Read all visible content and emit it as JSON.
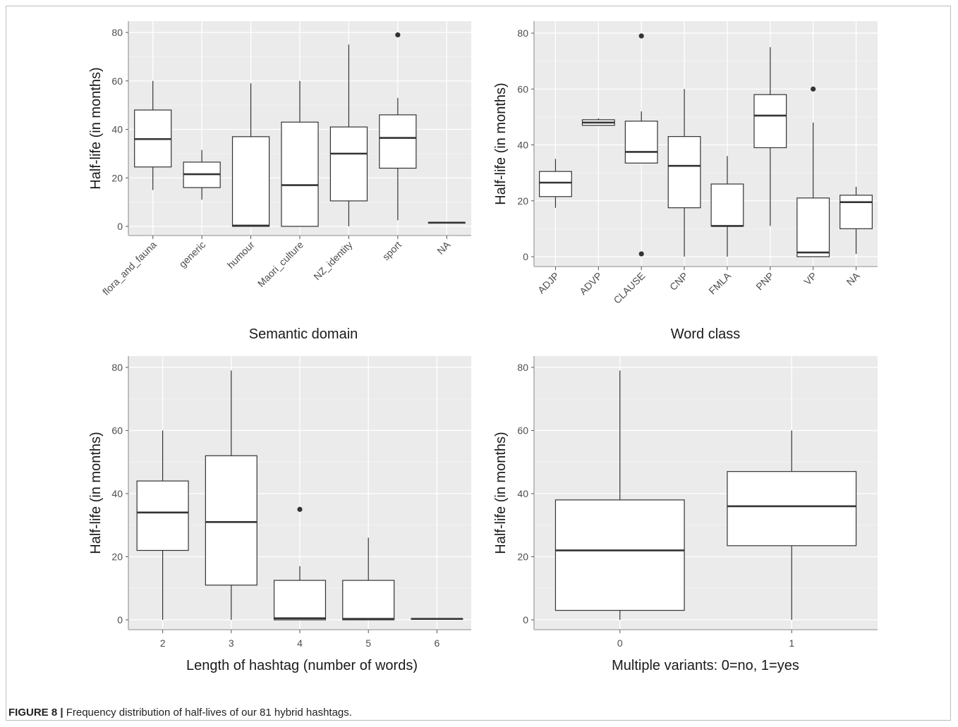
{
  "caption": {
    "label": "FIGURE 8 |",
    "text": "Frequency distribution of half-lives of our 81 hybrid hashtags."
  },
  "colors": {
    "panel_background": "#ebebeb",
    "grid": "#ffffff",
    "box_fill": "#ffffff",
    "box_stroke": "#333333"
  },
  "chart_data": [
    {
      "type": "boxplot",
      "xlabel": "Semantic domain",
      "ylabel": "Half-life (in months)",
      "ylim": [
        0,
        80
      ],
      "yticks": [
        0,
        20,
        40,
        60,
        80
      ],
      "rotated_x_labels": true,
      "grid": true,
      "categories": [
        "flora_and_fauna",
        "generic",
        "humour",
        "Maori_culture",
        "NZ_identity",
        "sport",
        "NA"
      ],
      "boxes": [
        {
          "min": 15,
          "q1": 24.5,
          "median": 36,
          "q3": 48,
          "max": 60,
          "outliers": []
        },
        {
          "min": 11,
          "q1": 16,
          "median": 21.5,
          "q3": 26.5,
          "max": 31.5,
          "outliers": []
        },
        {
          "min": 0,
          "q1": 0,
          "median": 0.3,
          "q3": 37,
          "max": 59,
          "outliers": []
        },
        {
          "min": 0,
          "q1": 0,
          "median": 17,
          "q3": 43,
          "max": 60,
          "outliers": []
        },
        {
          "min": 0,
          "q1": 10.5,
          "median": 30,
          "q3": 41,
          "max": 75,
          "outliers": []
        },
        {
          "min": 2.5,
          "q1": 24,
          "median": 36.5,
          "q3": 46,
          "max": 53,
          "outliers": [
            79
          ]
        },
        {
          "min": 1.5,
          "q1": 1.5,
          "median": 1.5,
          "q3": 1.5,
          "max": 1.5,
          "outliers": []
        }
      ]
    },
    {
      "type": "boxplot",
      "xlabel": "Word class",
      "ylabel": "Half-life (in months)",
      "ylim": [
        0,
        80
      ],
      "yticks": [
        0,
        20,
        40,
        60,
        80
      ],
      "rotated_x_labels": true,
      "grid": true,
      "categories": [
        "ADJP",
        "ADVP",
        "CLAUSE",
        "CNP",
        "FMLA",
        "PNP",
        "VP",
        "NA"
      ],
      "boxes": [
        {
          "min": 17.5,
          "q1": 21.5,
          "median": 26.5,
          "q3": 30.5,
          "max": 35,
          "outliers": []
        },
        {
          "min": 47,
          "q1": 47,
          "median": 48,
          "q3": 49,
          "max": 49.5,
          "outliers": []
        },
        {
          "min": 33.5,
          "q1": 33.5,
          "median": 37.5,
          "q3": 48.5,
          "max": 52,
          "outliers": [
            79,
            1
          ]
        },
        {
          "min": 0,
          "q1": 17.5,
          "median": 32.5,
          "q3": 43,
          "max": 60,
          "outliers": []
        },
        {
          "min": 0,
          "q1": 11,
          "median": 11,
          "q3": 26,
          "max": 36,
          "outliers": []
        },
        {
          "min": 11,
          "q1": 39,
          "median": 50.5,
          "q3": 58,
          "max": 75,
          "outliers": []
        },
        {
          "min": 0,
          "q1": 0,
          "median": 1.5,
          "q3": 21,
          "max": 48,
          "outliers": [
            60
          ]
        },
        {
          "min": 1,
          "q1": 10,
          "median": 19.5,
          "q3": 22,
          "max": 25,
          "outliers": []
        }
      ]
    },
    {
      "type": "boxplot",
      "xlabel": "Length of hashtag (number of words)",
      "ylabel": "Half-life (in months)",
      "ylim": [
        0,
        80
      ],
      "yticks": [
        0,
        20,
        40,
        60,
        80
      ],
      "rotated_x_labels": false,
      "grid": true,
      "categories": [
        "2",
        "3",
        "4",
        "5",
        "6"
      ],
      "boxes": [
        {
          "min": 0,
          "q1": 22,
          "median": 34,
          "q3": 44,
          "max": 60,
          "outliers": []
        },
        {
          "min": 0,
          "q1": 11,
          "median": 31,
          "q3": 52,
          "max": 79,
          "outliers": []
        },
        {
          "min": 0,
          "q1": 0,
          "median": 0.5,
          "q3": 12.5,
          "max": 17,
          "outliers": [
            35
          ]
        },
        {
          "min": 0,
          "q1": 0,
          "median": 0.3,
          "q3": 12.5,
          "max": 26,
          "outliers": []
        },
        {
          "min": 0.3,
          "q1": 0.3,
          "median": 0.3,
          "q3": 0.3,
          "max": 0.3,
          "outliers": []
        }
      ]
    },
    {
      "type": "boxplot",
      "xlabel": "Multiple variants: 0=no, 1=yes",
      "ylabel": "Half-life (in months)",
      "ylim": [
        0,
        80
      ],
      "yticks": [
        0,
        20,
        40,
        60,
        80
      ],
      "rotated_x_labels": false,
      "grid": true,
      "categories": [
        "0",
        "1"
      ],
      "boxes": [
        {
          "min": 0,
          "q1": 3,
          "median": 22,
          "q3": 38,
          "max": 79,
          "outliers": []
        },
        {
          "min": 0,
          "q1": 23.5,
          "median": 36,
          "q3": 47,
          "max": 60,
          "outliers": []
        }
      ]
    }
  ]
}
